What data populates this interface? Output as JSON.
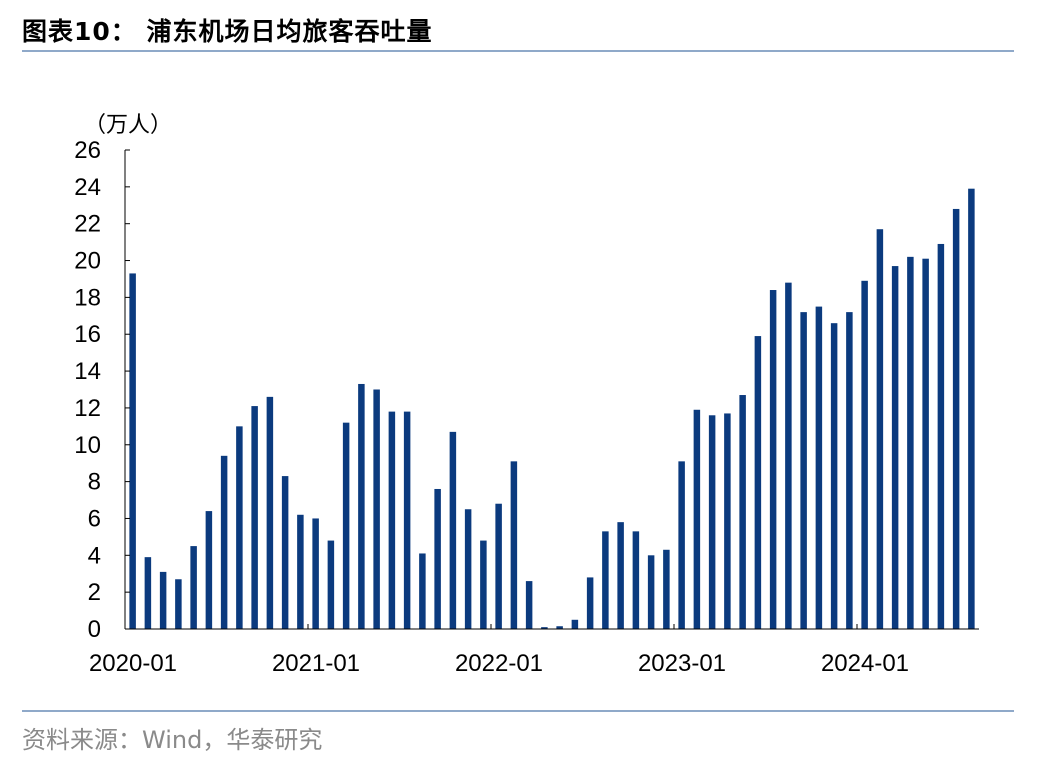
{
  "header": {
    "title": "图表10：  浦东机场日均旅客吞吐量"
  },
  "footer": {
    "source": "资料来源：Wind，华泰研究"
  },
  "colors": {
    "bar": "#0b3a7e",
    "rule": "#8fa9c9",
    "axis": "#000000"
  },
  "chart_data": {
    "type": "bar",
    "title": "",
    "unit_label": "（万人）",
    "xlabel": "",
    "ylabel": "",
    "ylim": [
      0,
      26
    ],
    "y_ticks": [
      0,
      2,
      4,
      6,
      8,
      10,
      12,
      14,
      16,
      18,
      20,
      22,
      24,
      26
    ],
    "x_tick_labels": [
      "2020-01",
      "2021-01",
      "2022-01",
      "2023-01",
      "2024-01"
    ],
    "x_tick_indices": [
      0,
      12,
      24,
      36,
      48
    ],
    "grid": false,
    "categories": [
      "2020-01",
      "2020-02",
      "2020-03",
      "2020-04",
      "2020-05",
      "2020-06",
      "2020-07",
      "2020-08",
      "2020-09",
      "2020-10",
      "2020-11",
      "2020-12",
      "2021-01",
      "2021-02",
      "2021-03",
      "2021-04",
      "2021-05",
      "2021-06",
      "2021-07",
      "2021-08",
      "2021-09",
      "2021-10",
      "2021-11",
      "2021-12",
      "2022-01",
      "2022-02",
      "2022-03",
      "2022-04",
      "2022-05",
      "2022-06",
      "2022-07",
      "2022-08",
      "2022-09",
      "2022-10",
      "2022-11",
      "2022-12",
      "2023-01",
      "2023-02",
      "2023-03",
      "2023-04",
      "2023-05",
      "2023-06",
      "2023-07",
      "2023-08",
      "2023-09",
      "2023-10",
      "2023-11",
      "2023-12",
      "2024-01",
      "2024-02",
      "2024-03",
      "2024-04",
      "2024-05",
      "2024-06",
      "2024-07",
      "2024-08"
    ],
    "values": [
      19.3,
      3.9,
      3.1,
      2.7,
      4.5,
      6.4,
      9.4,
      11.0,
      12.1,
      12.6,
      8.3,
      6.2,
      6.0,
      4.8,
      11.2,
      13.3,
      13.0,
      11.8,
      11.8,
      4.1,
      7.6,
      10.7,
      6.5,
      4.8,
      6.8,
      9.1,
      2.6,
      0.1,
      0.15,
      0.5,
      2.8,
      5.3,
      5.8,
      5.3,
      4.0,
      4.3,
      9.1,
      11.9,
      11.6,
      11.7,
      12.7,
      15.9,
      18.4,
      18.8,
      17.2,
      17.5,
      16.6,
      17.2,
      18.9,
      21.7,
      19.7,
      20.2,
      20.1,
      20.9,
      22.8,
      23.9
    ]
  }
}
